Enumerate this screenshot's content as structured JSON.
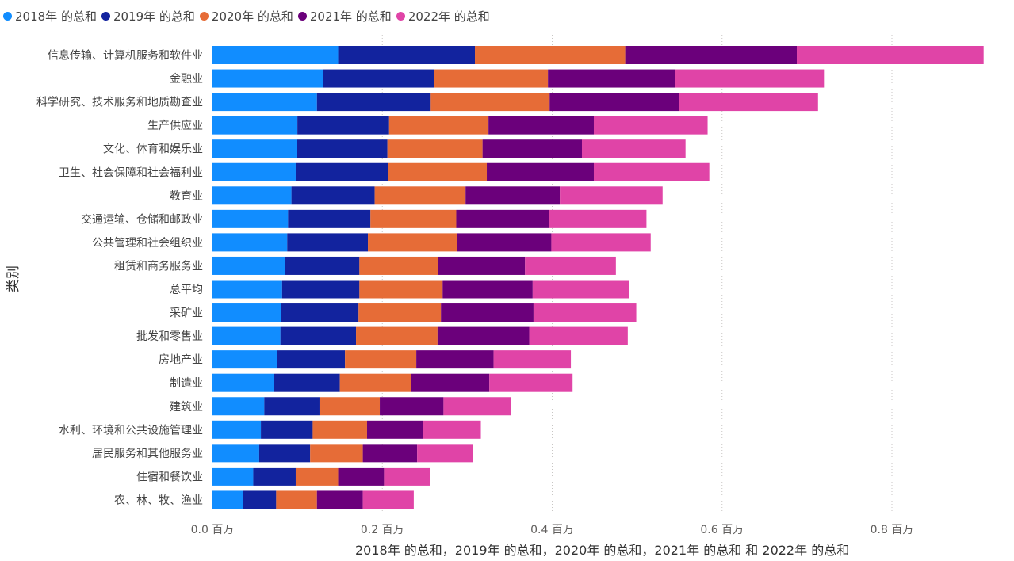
{
  "chart_data": {
    "type": "bar",
    "orientation": "horizontal",
    "stacked": true,
    "series": [
      {
        "name": "2018年 的总和",
        "color": "#118DFF",
        "values": [
          0.148,
          0.13,
          0.123,
          0.1,
          0.099,
          0.098,
          0.093,
          0.089,
          0.088,
          0.085,
          0.082,
          0.081,
          0.08,
          0.076,
          0.072,
          0.061,
          0.057,
          0.055,
          0.048,
          0.036
        ]
      },
      {
        "name": "2019年 的总和",
        "color": "#12239E",
        "values": [
          0.161,
          0.131,
          0.134,
          0.108,
          0.107,
          0.109,
          0.098,
          0.097,
          0.095,
          0.088,
          0.091,
          0.091,
          0.089,
          0.08,
          0.078,
          0.065,
          0.061,
          0.06,
          0.05,
          0.039
        ]
      },
      {
        "name": "2020年 的总和",
        "color": "#E66C37",
        "values": [
          0.177,
          0.134,
          0.14,
          0.117,
          0.112,
          0.116,
          0.107,
          0.101,
          0.105,
          0.093,
          0.098,
          0.097,
          0.096,
          0.084,
          0.084,
          0.071,
          0.064,
          0.062,
          0.05,
          0.048
        ]
      },
      {
        "name": "2021年 的总和",
        "color": "#6B007B",
        "values": [
          0.202,
          0.15,
          0.152,
          0.124,
          0.117,
          0.126,
          0.111,
          0.109,
          0.111,
          0.102,
          0.106,
          0.109,
          0.108,
          0.091,
          0.092,
          0.075,
          0.066,
          0.064,
          0.054,
          0.054
        ]
      },
      {
        "name": "2022年 的总和",
        "color": "#E044A7",
        "values": [
          0.22,
          0.175,
          0.164,
          0.134,
          0.122,
          0.136,
          0.121,
          0.115,
          0.117,
          0.107,
          0.114,
          0.121,
          0.116,
          0.091,
          0.098,
          0.079,
          0.068,
          0.066,
          0.054,
          0.06
        ]
      }
    ],
    "categories": [
      "信息传输、计算机服务和软件业",
      "金融业",
      "科学研究、技术服务和地质勘查业",
      "生产供应业",
      "文化、体育和娱乐业",
      "卫生、社会保障和社会福利业",
      "教育业",
      "交通运输、仓储和邮政业",
      "公共管理和社会组织业",
      "租赁和商务服务业",
      "总平均",
      "采矿业",
      "批发和零售业",
      "房地产业",
      "制造业",
      "建筑业",
      "水利、环境和公共设施管理业",
      "居民服务和其他服务业",
      "住宿和餐饮业",
      "农、林、牧、渔业"
    ],
    "xlim": [
      0,
      0.91
    ],
    "xticks": [
      0,
      0.2,
      0.4,
      0.6,
      0.8
    ],
    "xtick_labels": [
      "0.0 百万",
      "0.2 百万",
      "0.4 百万",
      "0.6 百万",
      "0.8 百万"
    ],
    "grid": true,
    "legend_position": "top-left",
    "xlabel": "2018年 的总和，2019年 的总和，2020年 的总和，2021年 的总和 和 2022年 的总和",
    "ylabel": "类别"
  }
}
